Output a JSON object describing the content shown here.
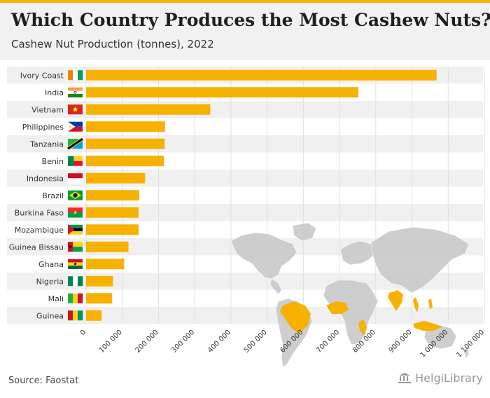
{
  "header": {
    "title": "Which Country Produces the Most Cashew Nuts?",
    "subtitle": "Cashew Nut Production (tonnes), 2022"
  },
  "footer": {
    "source": "Source: Faostat",
    "logo_text": "HelgiLibrary"
  },
  "colors": {
    "bar": "#f7b100",
    "highlight_country": "#f7b100",
    "map_land": "#cccccc",
    "row_stripe": "#f0f0f0",
    "title_accent": "#f5b400"
  },
  "chart_data": {
    "type": "bar",
    "orientation": "horizontal",
    "title": "Which Country Produces the Most Cashew Nuts?",
    "subtitle": "Cashew Nut Production (tonnes), 2022",
    "categories": [
      "Ivory Coast",
      "India",
      "Vietnam",
      "Philippines",
      "Tanzania",
      "Benin",
      "Indonesia",
      "Brazil",
      "Burkina Faso",
      "Mozambique",
      "Guinea Bissau",
      "Ghana",
      "Nigeria",
      "Mali",
      "Guinea"
    ],
    "values": [
      968000,
      752000,
      343000,
      218000,
      217000,
      215000,
      163000,
      147000,
      145000,
      145000,
      117000,
      105000,
      74000,
      72000,
      43000
    ],
    "xlim": [
      0,
      1100000
    ],
    "xticks": [
      0,
      100000,
      200000,
      300000,
      400000,
      500000,
      600000,
      700000,
      800000,
      900000,
      1000000,
      1100000
    ],
    "xtick_labels": [
      "0",
      "100 000",
      "200 000",
      "300 000",
      "400 000",
      "500 000",
      "600 000",
      "700 000",
      "800 000",
      "900 000",
      "1 000 000",
      "1 100 000"
    ],
    "grid": true,
    "background": "world map with producing countries highlighted",
    "flags": [
      "ivory-coast-flag",
      "india-flag",
      "vietnam-flag",
      "philippines-flag",
      "tanzania-flag",
      "benin-flag",
      "indonesia-flag",
      "brazil-flag",
      "burkina-faso-flag",
      "mozambique-flag",
      "guinea-bissau-flag",
      "ghana-flag",
      "nigeria-flag",
      "mali-flag",
      "guinea-flag"
    ]
  }
}
